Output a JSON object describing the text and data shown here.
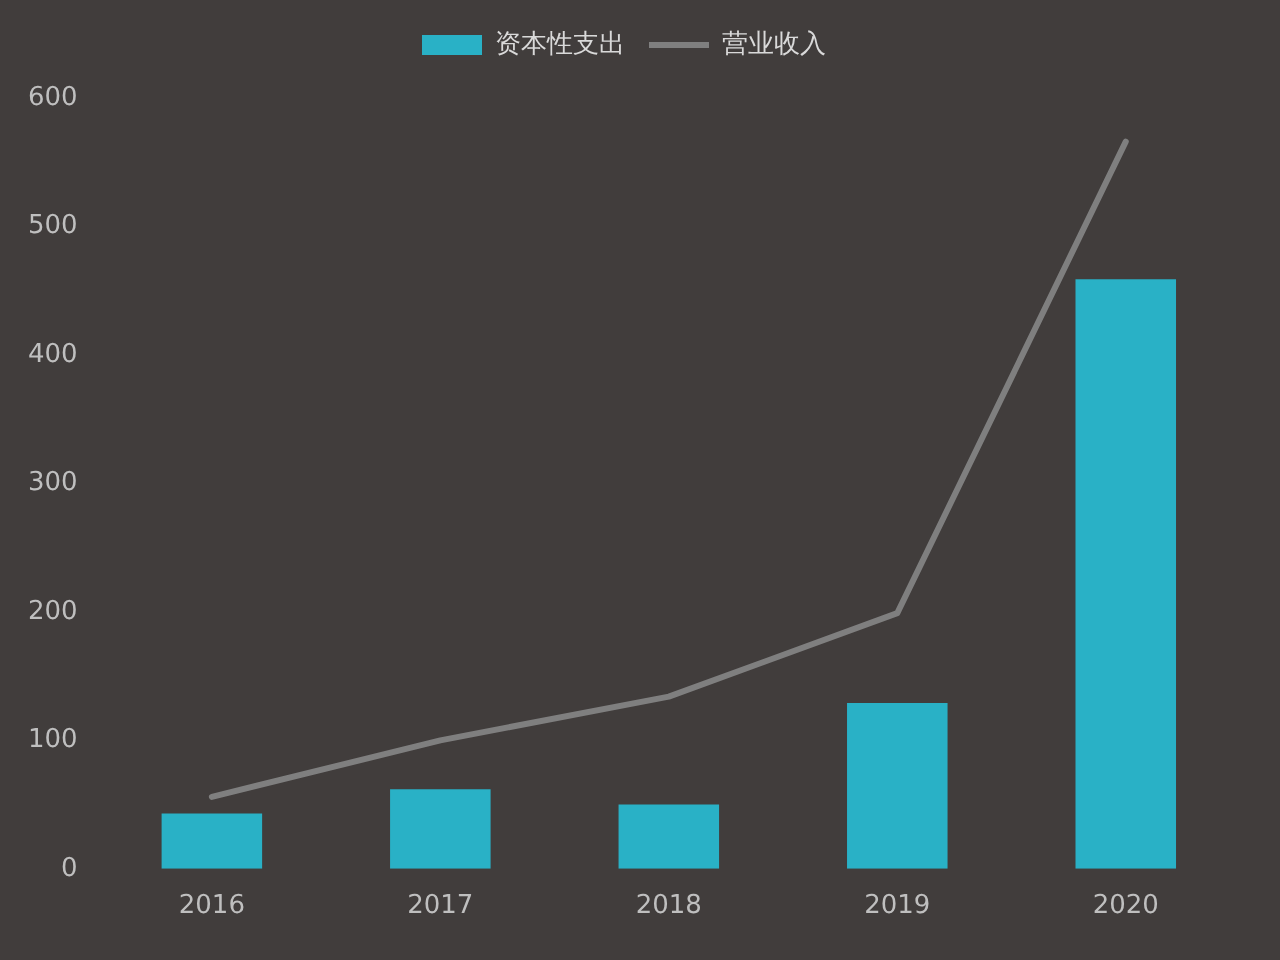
{
  "chart_data": {
    "type": "bar",
    "categories": [
      "2016",
      "2017",
      "2018",
      "2019",
      "2020"
    ],
    "series": [
      {
        "name": "资本性支出",
        "color": "#29b1c6",
        "values": [
          43,
          62,
          50,
          129,
          459
        ]
      },
      {
        "name": "营业收入",
        "type": "line",
        "color": "#7f7f7f",
        "values": [
          56,
          100,
          134,
          199,
          566
        ]
      }
    ],
    "ylim": [
      0,
      600
    ],
    "yticks": [
      0,
      100,
      200,
      300,
      400,
      500,
      600
    ],
    "legend": "top"
  }
}
